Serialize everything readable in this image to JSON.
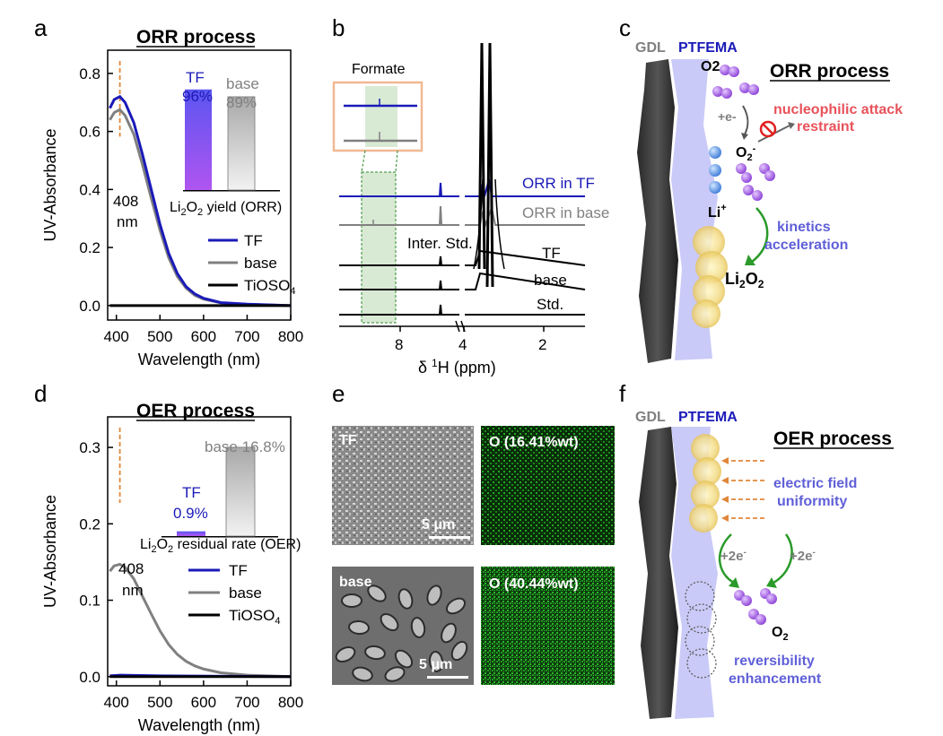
{
  "panels": {
    "a": {
      "letter": "a",
      "title": "ORR process",
      "xlabel": "Wavelength (nm)",
      "ylabel": "UV-Absorbance",
      "peak": "408",
      "peak_unit": "nm",
      "legend": [
        "TF",
        "base",
        "TiOSO4"
      ],
      "inset_caption": "Li2O2 yield (ORR)",
      "inset": [
        {
          "name": "TF",
          "value": "96%"
        },
        {
          "name": "base",
          "value": "89%"
        }
      ]
    },
    "b": {
      "letter": "b",
      "inset_title": "Formate",
      "xlabel": "δ 1H  (ppm)",
      "traces": [
        "ORR in TF",
        "ORR in base",
        "TF",
        "base",
        "Std."
      ],
      "inter_std": "Inter. Std."
    },
    "c": {
      "letter": "c",
      "gdl": "GDL",
      "ptfema": "PTFEMA",
      "title": "ORR process",
      "o2": "O2",
      "e": "+e-",
      "o2minus": "O2-",
      "attack1": "nucleophilic attack",
      "attack2": "restraint",
      "li": "Li+",
      "kin1": "kinetics",
      "kin2": "acceleration",
      "product": "Li2O2"
    },
    "d": {
      "letter": "d",
      "title": "OER process",
      "xlabel": "Wavelength (nm)",
      "ylabel": "UV-Absorbance",
      "peak": "408",
      "peak_unit": "nm",
      "legend": [
        "TF",
        "base",
        "TiOSO4"
      ],
      "inset_caption": "Li2O2 residual rate (OER)",
      "inset": [
        {
          "name": "TF",
          "value": "0.9%"
        },
        {
          "name": "base",
          "value": "16.8%"
        }
      ]
    },
    "e": {
      "letter": "e",
      "tf_label": "TF",
      "base_label": "base",
      "tf_o": "O (16.41%wt)",
      "base_o": "O (40.44%wt)",
      "scale": "5 μm"
    },
    "f": {
      "letter": "f",
      "gdl": "GDL",
      "ptfema": "PTFEMA",
      "title": "OER process",
      "ef1": "electric field",
      "ef2": "uniformity",
      "e_left": "+2e-",
      "e_right": "+2e-",
      "o2": "O2",
      "rev1": "reversibility",
      "rev2": "enhancement"
    }
  },
  "chart_data": [
    {
      "type": "line",
      "panel": "a",
      "title": "ORR process",
      "xlabel": "Wavelength (nm)",
      "ylabel": "UV-Absorbance",
      "xlim": [
        380,
        800
      ],
      "ylim": [
        -0.05,
        0.88
      ],
      "xticks": [
        400,
        500,
        600,
        700,
        800
      ],
      "yticks": [
        0.0,
        0.2,
        0.4,
        0.6,
        0.8
      ],
      "series": [
        {
          "name": "TF",
          "color": "#1a1ab8",
          "x": [
            385,
            395,
            408,
            420,
            440,
            460,
            480,
            500,
            520,
            540,
            560,
            580,
            600,
            640,
            700,
            800
          ],
          "y": [
            0.68,
            0.71,
            0.72,
            0.7,
            0.63,
            0.52,
            0.4,
            0.28,
            0.18,
            0.11,
            0.065,
            0.04,
            0.025,
            0.01,
            0.005,
            0.0
          ]
        },
        {
          "name": "base",
          "color": "#808080",
          "x": [
            385,
            395,
            408,
            420,
            440,
            460,
            480,
            500,
            520,
            540,
            560,
            580,
            600,
            640,
            700,
            800
          ],
          "y": [
            0.64,
            0.665,
            0.675,
            0.655,
            0.59,
            0.485,
            0.37,
            0.26,
            0.165,
            0.1,
            0.06,
            0.035,
            0.022,
            0.009,
            0.004,
            0.0
          ]
        },
        {
          "name": "TiOSO4",
          "color": "#000000",
          "x": [
            385,
            800
          ],
          "y": [
            0.0,
            0.0
          ]
        }
      ]
    },
    {
      "type": "bar",
      "panel": "a-inset",
      "title": "Li2O2 yield (ORR)",
      "categories": [
        "TF",
        "base"
      ],
      "values": [
        96,
        89
      ],
      "ylim": [
        0,
        130
      ]
    },
    {
      "type": "line",
      "panel": "d",
      "title": "OER process",
      "xlabel": "Wavelength (nm)",
      "ylabel": "UV-Absorbance",
      "xlim": [
        380,
        800
      ],
      "ylim": [
        -0.012,
        0.34
      ],
      "xticks": [
        400,
        500,
        600,
        700,
        800
      ],
      "yticks": [
        0.0,
        0.1,
        0.2,
        0.3
      ],
      "series": [
        {
          "name": "TF",
          "color": "#1a1ab8",
          "x": [
            385,
            408,
            500,
            800
          ],
          "y": [
            0.001,
            0.002,
            0.001,
            0.0
          ]
        },
        {
          "name": "base",
          "color": "#808080",
          "x": [
            385,
            395,
            408,
            420,
            440,
            460,
            480,
            500,
            520,
            540,
            560,
            580,
            600,
            640,
            700,
            800
          ],
          "y": [
            0.138,
            0.145,
            0.147,
            0.143,
            0.128,
            0.105,
            0.082,
            0.06,
            0.042,
            0.029,
            0.02,
            0.014,
            0.01,
            0.005,
            0.002,
            0.0
          ]
        },
        {
          "name": "TiOSO4",
          "color": "#000000",
          "x": [
            385,
            800
          ],
          "y": [
            0.0,
            0.0
          ]
        }
      ]
    },
    {
      "type": "bar",
      "panel": "d-inset",
      "title": "Li2O2 residual rate (OER)",
      "categories": [
        "TF",
        "base"
      ],
      "values": [
        0.9,
        16.8
      ],
      "ylim": [
        0,
        20
      ]
    },
    {
      "type": "line",
      "panel": "b",
      "title": "",
      "xlabel": "δ 1H  (ppm)",
      "xticks": [
        "8",
        "4",
        "2"
      ],
      "series": [
        {
          "name": "ORR in TF"
        },
        {
          "name": "ORR in base"
        },
        {
          "name": "TF"
        },
        {
          "name": "base"
        },
        {
          "name": "Std."
        }
      ]
    }
  ]
}
